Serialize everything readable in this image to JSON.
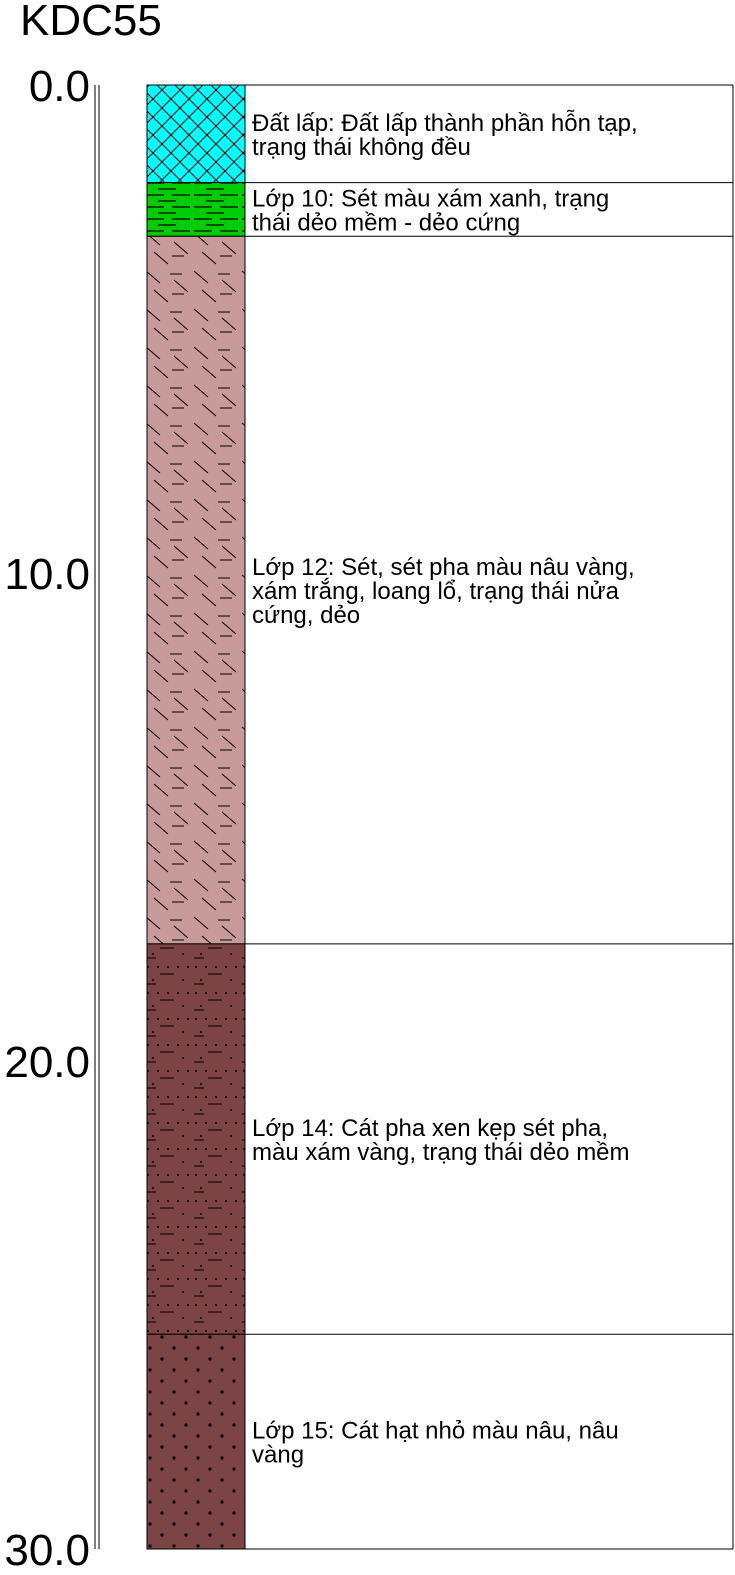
{
  "title": "KDC55",
  "depth_axis": {
    "min": 0,
    "max": 30,
    "ticks": [
      "0.0",
      "10.0",
      "20.0",
      "30.0"
    ]
  },
  "layers": [
    {
      "top": 0.0,
      "bottom": 2.0,
      "color": "#00ffff",
      "pattern": "crosshatch",
      "desc_lines": [
        "Đất lấp: Đất lấp thành phần hỗn tạp,",
        "trạng thái không đều"
      ]
    },
    {
      "top": 2.0,
      "bottom": 3.1,
      "color": "#00cc00",
      "pattern": "dashes",
      "desc_lines": [
        "Lớp 10: Sét màu xám xanh, trạng",
        "thái dẻo mềm - dẻo cứng"
      ]
    },
    {
      "top": 3.1,
      "bottom": 17.6,
      "color": "#c89a9a",
      "pattern": "slash-dash",
      "desc_lines": [
        "Lớp 12: Sét, sét pha màu nâu vàng,",
        "xám trắng, loang lổ, trạng thái nửa",
        "cứng, dẻo"
      ]
    },
    {
      "top": 17.6,
      "bottom": 25.6,
      "color": "#7c4444",
      "pattern": "dot-dash",
      "desc_lines": [
        "Lớp 14: Cát pha xen kẹp sét pha,",
        "màu xám vàng, trạng thái dẻo mềm"
      ]
    },
    {
      "top": 25.6,
      "bottom": 30.0,
      "color": "#7c4444",
      "pattern": "dots",
      "desc_lines": [
        "Lớp 15: Cát hạt nhỏ màu nâu, nâu",
        "vàng"
      ]
    }
  ]
}
